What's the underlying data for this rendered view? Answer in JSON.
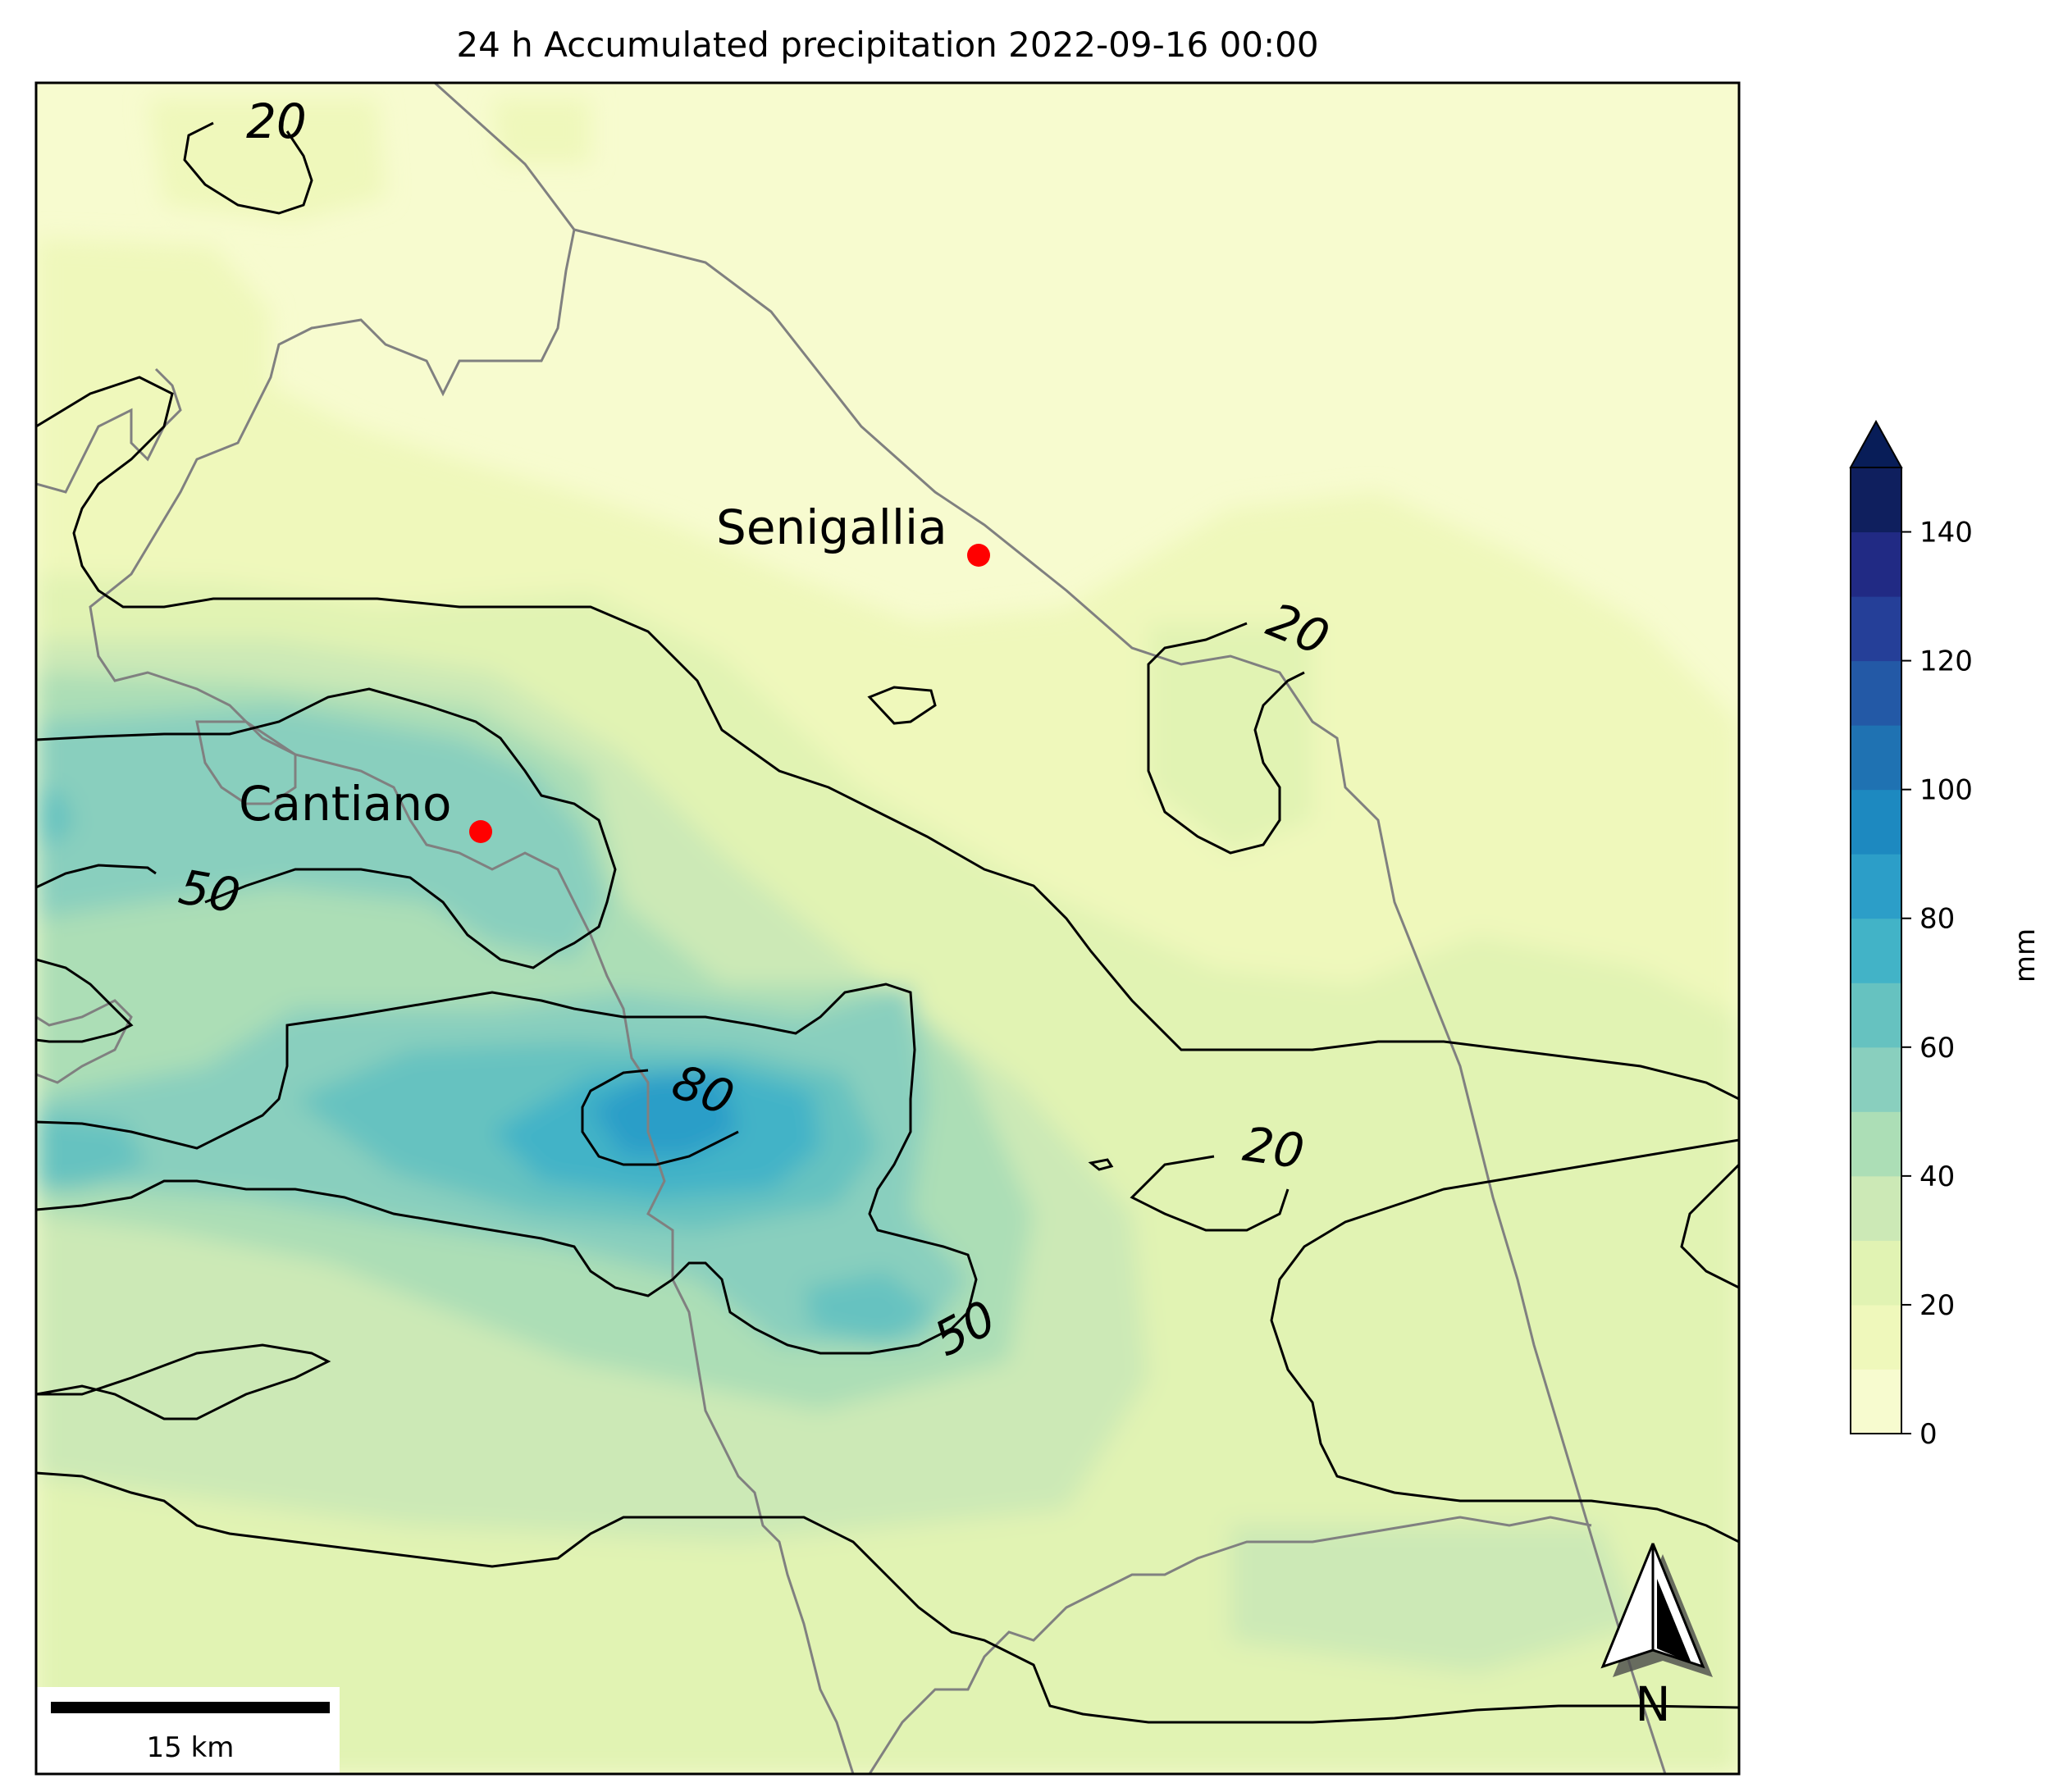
{
  "title": "24 h Accumulated precipitation 2022-09-16 00:00",
  "places": [
    {
      "name": "Senigallia"
    },
    {
      "name": "Cantiano"
    }
  ],
  "contour_labels": [
    "20",
    "20",
    "50",
    "80",
    "50",
    "20"
  ],
  "colorbar": {
    "unit": "mm",
    "ticks": [
      "0",
      "20",
      "40",
      "60",
      "80",
      "100",
      "120",
      "140"
    ],
    "max": 150,
    "levels": [
      0,
      10,
      20,
      30,
      40,
      50,
      60,
      70,
      80,
      90,
      100,
      110,
      120,
      130,
      140,
      150
    ],
    "colors": [
      "#f7fbcf",
      "#eff8bb",
      "#e1f3b3",
      "#cce9b6",
      "#acdeb6",
      "#89cfbe",
      "#66c2c0",
      "#42b3c7",
      "#2c9ec8",
      "#1d89c0",
      "#1f72b2",
      "#2359a6",
      "#253f98",
      "#212a84",
      "#0f1f5e"
    ],
    "extend_color": "#081d58"
  },
  "scalebar": {
    "label": "15 km"
  },
  "north_arrow": {
    "label": "N"
  },
  "colors": {
    "background_fill": "#f7fbcf",
    "border_line": "#808080",
    "contour_line": "#000000",
    "marker": "#ff0000"
  }
}
